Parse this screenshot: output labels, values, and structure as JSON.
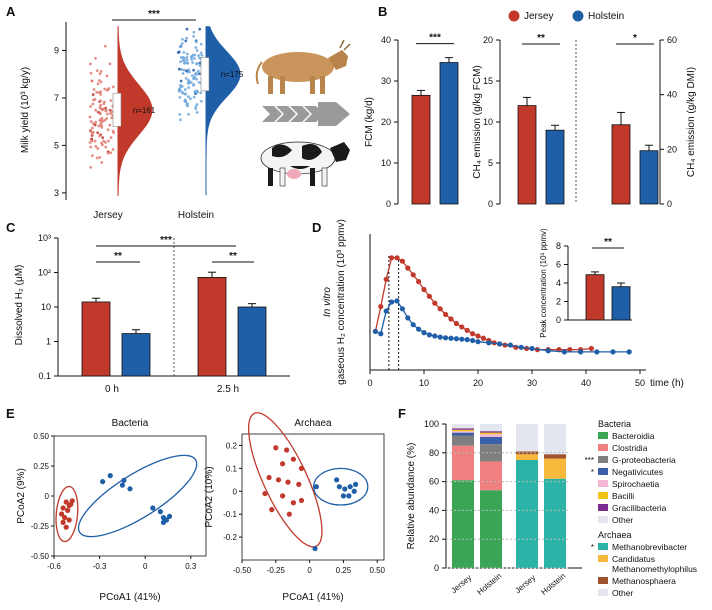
{
  "colors": {
    "jersey": "#c0392b",
    "holstein": "#1f5fa8",
    "jersey_light": "#e07b73",
    "holstein_light": "#6ea8dc"
  },
  "legend_top": {
    "jersey": "Jersey",
    "holstein": "Holstein"
  },
  "panels": {
    "A": "A",
    "B": "B",
    "C": "C",
    "D": "D",
    "E": "E",
    "F": "F"
  },
  "chart_data": [
    {
      "panel": "A",
      "type": "scatter",
      "ylabel": "Milk yield (10³ kg/y)",
      "categories": [
        "Jersey",
        "Holstein"
      ],
      "ylim": [
        2.7,
        10.2
      ],
      "yticks": [
        "3",
        "5",
        "7",
        "9"
      ],
      "ytick_values": [
        3,
        5,
        7,
        9
      ],
      "sample_labels": [
        "n=161",
        "n=175"
      ],
      "medians": [
        6.5,
        8.0
      ],
      "significance": "***"
    },
    {
      "panel": "B1",
      "type": "bar",
      "ylabel": "FCM (kg/d)",
      "categories": [
        "Jersey",
        "Holstein"
      ],
      "values": [
        26.5,
        34.5
      ],
      "errors": [
        1.2,
        1.2
      ],
      "ylim": [
        0,
        40
      ],
      "yticks": [
        "0",
        "10",
        "20",
        "30",
        "40"
      ],
      "ytick_values": [
        0,
        10,
        20,
        30,
        40
      ],
      "significance": "***"
    },
    {
      "panel": "B2",
      "type": "bar",
      "ylabel": "CH₄ emission (g/kg FCM)",
      "categories": [
        "Jersey",
        "Holstein"
      ],
      "values": [
        12,
        9
      ],
      "errors": [
        1,
        0.6
      ],
      "ylim": [
        0,
        20
      ],
      "yticks": [
        "0",
        "5",
        "10",
        "15",
        "20"
      ],
      "ytick_values": [
        0,
        5,
        10,
        15,
        20
      ],
      "significance": "**"
    },
    {
      "panel": "B3",
      "type": "bar",
      "ylabel": "CH₄ emission (g/kg DMI)",
      "categories": [
        "Jersey",
        "Holstein"
      ],
      "values": [
        29,
        19.5
      ],
      "errors": [
        4.5,
        2
      ],
      "ylim": [
        0,
        60
      ],
      "yticks": [
        "0",
        "20",
        "40",
        "60"
      ],
      "ytick_values": [
        0,
        20,
        40,
        60
      ],
      "significance": "*"
    },
    {
      "panel": "C",
      "type": "bar",
      "ylabel": "Dissolved H₂ (μM)",
      "categories": [
        "0 h",
        "2.5 h"
      ],
      "series": [
        {
          "name": "Jersey",
          "values": [
            14,
            72
          ],
          "errors": [
            4,
            30
          ]
        },
        {
          "name": "Holstein",
          "values": [
            1.7,
            10
          ],
          "errors": [
            0.5,
            2.5
          ]
        }
      ],
      "yscale": "log",
      "ylim": [
        0.1,
        1000
      ],
      "yticks": [
        "0.1",
        "1",
        "10",
        "10²",
        "10³"
      ],
      "ytick_values": [
        0.1,
        1,
        10,
        100,
        1000
      ],
      "significance": [
        "**",
        "**",
        "***"
      ]
    },
    {
      "panel": "D",
      "type": "line",
      "ylabel_italic": "In vitro",
      "ylabel": "gaseous H₂ concentration (10³ ppmv)",
      "xlabel": "time (h)",
      "xlim": [
        0,
        50
      ],
      "xticks": [
        "0",
        "10",
        "20",
        "30",
        "40",
        "50"
      ],
      "xtick_values": [
        0,
        10,
        20,
        30,
        40,
        50
      ],
      "ylim": [
        0,
        6
      ],
      "series": [
        {
          "name": "Jersey",
          "x": [
            1,
            2,
            3,
            4,
            5,
            6,
            7,
            8,
            9,
            10,
            11,
            12,
            13,
            14,
            15,
            16,
            17,
            18,
            19,
            20,
            21,
            22,
            23,
            24,
            25,
            27,
            29,
            31,
            33,
            35,
            37,
            39,
            41
          ],
          "y": [
            1.7,
            2.8,
            4.0,
            4.95,
            4.95,
            4.8,
            4.5,
            4.2,
            3.9,
            3.55,
            3.25,
            2.95,
            2.7,
            2.45,
            2.25,
            2.05,
            1.9,
            1.75,
            1.6,
            1.5,
            1.4,
            1.3,
            1.2,
            1.15,
            1.1,
            1.0,
            0.95,
            0.9,
            0.9,
            0.9,
            0.9,
            0.9,
            0.95
          ]
        },
        {
          "name": "Holstein",
          "x": [
            1,
            2,
            3,
            4,
            5,
            6,
            7,
            8,
            9,
            10,
            11,
            12,
            13,
            14,
            15,
            16,
            17,
            18,
            19,
            20,
            22,
            24,
            26,
            28,
            30,
            33,
            36,
            39,
            42,
            45,
            48
          ],
          "y": [
            1.7,
            1.6,
            2.6,
            3.0,
            3.05,
            2.7,
            2.3,
            2.0,
            1.8,
            1.65,
            1.55,
            1.5,
            1.45,
            1.42,
            1.4,
            1.38,
            1.36,
            1.34,
            1.3,
            1.25,
            1.2,
            1.15,
            1.1,
            1.0,
            0.95,
            0.85,
            0.8,
            0.8,
            0.8,
            0.8,
            0.8
          ]
        }
      ],
      "vlines_x": [
        3.5,
        5.3
      ]
    },
    {
      "panel": "D-inset",
      "type": "bar",
      "ylabel": "Peak concentration (10³ ppmv)",
      "categories": [
        "Jersey",
        "Holstein"
      ],
      "values": [
        4.9,
        3.6
      ],
      "errors": [
        0.3,
        0.4
      ],
      "ylim": [
        0,
        8
      ],
      "yticks": [
        "0",
        "2",
        "4",
        "6",
        "8"
      ],
      "ytick_values": [
        0,
        2,
        4,
        6,
        8
      ],
      "significance": "**"
    },
    {
      "panel": "E1",
      "type": "scatter",
      "title": "Bacteria",
      "xlabel": "PCoA1 (41%)",
      "ylabel": "PCoA2 (9%)",
      "xlim": [
        -0.6,
        0.4
      ],
      "ylim": [
        -0.5,
        0.5
      ],
      "xticks": [
        "-0.6",
        "-0.3",
        "0",
        "0.3"
      ],
      "xtick_values": [
        -0.6,
        -0.3,
        0,
        0.3
      ],
      "yticks": [
        "-0.50",
        "-0.25",
        "0",
        "0.25",
        "0.50"
      ],
      "ytick_values": [
        -0.5,
        -0.25,
        0,
        0.25,
        0.5
      ],
      "series": [
        {
          "name": "Jersey",
          "points": [
            [
              -0.52,
              -0.05
            ],
            [
              -0.5,
              -0.08
            ],
            [
              -0.54,
              -0.1
            ],
            [
              -0.51,
              -0.12
            ],
            [
              -0.55,
              -0.15
            ],
            [
              -0.49,
              -0.07
            ],
            [
              -0.53,
              -0.18
            ],
            [
              -0.5,
              -0.2
            ],
            [
              -0.52,
              -0.26
            ],
            [
              -0.54,
              -0.22
            ],
            [
              -0.48,
              -0.04
            ]
          ]
        },
        {
          "name": "Holstein",
          "points": [
            [
              -0.28,
              0.12
            ],
            [
              -0.23,
              0.17
            ],
            [
              -0.15,
              0.09
            ],
            [
              -0.14,
              0.13
            ],
            [
              -0.1,
              0.06
            ],
            [
              0.05,
              -0.1
            ],
            [
              0.1,
              -0.13
            ],
            [
              0.12,
              -0.18
            ],
            [
              0.14,
              -0.2
            ],
            [
              0.16,
              -0.17
            ],
            [
              0.12,
              -0.22
            ]
          ]
        }
      ]
    },
    {
      "panel": "E2",
      "type": "scatter",
      "title": "Archaea",
      "xlabel": "PCoA1 (41%)",
      "ylabel": "PCoA2 (10%)",
      "xlim": [
        -0.5,
        0.55
      ],
      "ylim": [
        -0.3,
        0.25
      ],
      "xticks": [
        "-0.50",
        "-0.25",
        "0",
        "0.25",
        "0.50"
      ],
      "xtick_values": [
        -0.5,
        -0.25,
        0,
        0.25,
        0.5
      ],
      "yticks": [
        "-0.2",
        "-0.1",
        "0",
        "0.1",
        "0.2"
      ],
      "ytick_values": [
        -0.2,
        -0.1,
        0,
        0.1,
        0.2
      ],
      "series": [
        {
          "name": "Jersey",
          "points": [
            [
              -0.25,
              0.19
            ],
            [
              -0.17,
              0.18
            ],
            [
              -0.12,
              0.14
            ],
            [
              -0.2,
              0.12
            ],
            [
              -0.06,
              0.1
            ],
            [
              -0.3,
              0.06
            ],
            [
              -0.23,
              0.05
            ],
            [
              -0.16,
              0.04
            ],
            [
              -0.08,
              0.03
            ],
            [
              -0.33,
              -0.01
            ],
            [
              -0.2,
              -0.02
            ],
            [
              -0.12,
              -0.05
            ],
            [
              -0.28,
              -0.08
            ],
            [
              -0.15,
              -0.1
            ],
            [
              -0.06,
              -0.04
            ]
          ]
        },
        {
          "name": "Holstein",
          "points": [
            [
              0.2,
              0.05
            ],
            [
              0.22,
              0.02
            ],
            [
              0.26,
              0.01
            ],
            [
              0.3,
              0.02
            ],
            [
              0.33,
              0.0
            ],
            [
              0.29,
              -0.02
            ],
            [
              0.25,
              -0.02
            ],
            [
              0.34,
              0.03
            ],
            [
              0.05,
              0.02
            ],
            [
              0.04,
              -0.25
            ]
          ]
        }
      ]
    },
    {
      "panel": "F",
      "type": "bar",
      "ylabel": "Relative abundance (%)",
      "categories": [
        "Jersey",
        "Holstein",
        "Jersey",
        "Holstein"
      ],
      "ylim": [
        0,
        100
      ],
      "yticks": [
        "0",
        "20",
        "40",
        "60",
        "80",
        "100"
      ],
      "ytick_values": [
        0,
        20,
        40,
        60,
        80,
        100
      ],
      "legend_groups": [
        "Bacteria",
        "Archaea"
      ],
      "series": [
        {
          "name": "Bacteroidia",
          "group": "Bacteria",
          "color": "#3aa655",
          "values": [
            61,
            54,
            0,
            0
          ]
        },
        {
          "name": "Clostridia",
          "group": "Bacteria",
          "color": "#f08080",
          "values": [
            24,
            20,
            0,
            0
          ]
        },
        {
          "name": "G-proteobacteria",
          "group": "Bacteria",
          "color": "#7f7f7f",
          "values": [
            7,
            12,
            0,
            0
          ],
          "marker": "***"
        },
        {
          "name": "Negativicutes",
          "group": "Bacteria",
          "color": "#3a5fa8",
          "values": [
            2,
            5,
            0,
            0
          ],
          "marker": "*"
        },
        {
          "name": "Spirochaetia",
          "group": "Bacteria",
          "color": "#f4b6d2",
          "values": [
            1,
            2,
            0,
            0
          ]
        },
        {
          "name": "Bacilli",
          "group": "Bacteria",
          "color": "#f0c419",
          "values": [
            1,
            1,
            0,
            0
          ]
        },
        {
          "name": "Gracilibacteria",
          "group": "Bacteria",
          "color": "#7b2d8e",
          "values": [
            1,
            1,
            0,
            0
          ]
        },
        {
          "name": "Other",
          "group": "Bacteria",
          "color": "#e4e6ef",
          "values": [
            3,
            5,
            0,
            0
          ]
        },
        {
          "name": "Methanobrevibacter",
          "group": "Archaea",
          "color": "#2bb3a8",
          "values": [
            0,
            0,
            75,
            62
          ],
          "marker": "*"
        },
        {
          "name": "Candidatus Methanomethylophilus",
          "group": "Archaea",
          "color": "#f6b93b",
          "values": [
            0,
            0,
            4,
            14
          ]
        },
        {
          "name": "Methanosphaera",
          "group": "Archaea",
          "color": "#a0522d",
          "values": [
            0,
            0,
            2,
            3
          ]
        },
        {
          "name": "Other",
          "group": "Archaea",
          "color": "#e4e6ef",
          "values": [
            0,
            0,
            19,
            21
          ]
        }
      ]
    }
  ]
}
